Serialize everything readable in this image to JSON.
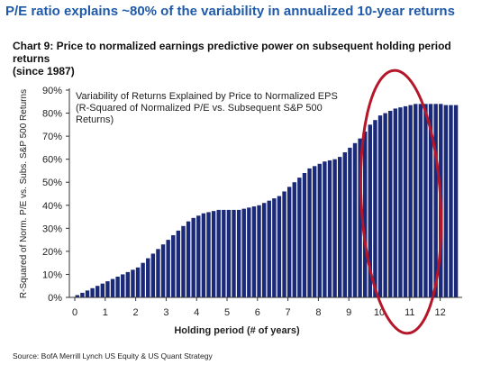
{
  "headline": "P/E ratio explains ~80% of the variability in annualized 10-year returns",
  "chart_title_line1": "Chart 9: Price to normalized earnings predictive power on subsequent holding period returns",
  "chart_title_line2": "(since 1987)",
  "source": "Source: BofA Merrill Lynch US Equity & US Quant Strategy",
  "colors": {
    "bar": "#1a2a78",
    "circle": "#b5162a",
    "headline": "#1f5aa8"
  },
  "chart_data": {
    "type": "bar",
    "xlabel": "Holding period (# of years)",
    "ylabel": "R-Squared of Norm. P/E vs. Subs. S&P 500 Returns",
    "annotation": [
      "Variability of Returns Explained by Price to Normalized EPS",
      "(R-Squared of Normalized P/E vs. Subsequent S&P 500",
      "Returns)"
    ],
    "x_ticks": [
      "0",
      "1",
      "2",
      "3",
      "4",
      "5",
      "6",
      "7",
      "8",
      "9",
      "10",
      "11",
      "12"
    ],
    "y_ticks": [
      "0%",
      "10%",
      "20%",
      "30%",
      "40%",
      "50%",
      "60%",
      "70%",
      "80%",
      "90%"
    ],
    "xlim": [
      0,
      12.6
    ],
    "ylim": [
      0,
      90
    ],
    "grid": false,
    "legend": "none",
    "values": [
      1,
      2,
      3,
      4,
      5,
      6,
      7,
      8,
      9,
      10,
      11,
      12,
      13,
      15,
      17,
      19,
      21,
      23,
      25,
      27,
      29,
      31,
      33,
      34.5,
      35.5,
      36.5,
      37,
      37.5,
      38,
      38,
      38,
      38,
      38,
      38.5,
      39,
      39.5,
      40,
      41,
      42,
      43,
      44,
      46,
      48,
      50,
      52,
      54,
      56,
      57,
      58,
      59,
      59.5,
      60,
      61,
      63,
      65,
      67,
      69,
      72,
      75,
      77,
      79,
      80,
      81,
      82,
      82.5,
      83,
      83.5,
      84,
      84,
      84,
      84,
      84,
      84,
      83.5,
      83.5,
      83.5
    ]
  }
}
